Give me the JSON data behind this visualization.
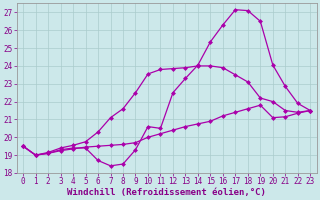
{
  "xlabel": "Windchill (Refroidissement éolien,°C)",
  "xlim": [
    -0.5,
    23.5
  ],
  "ylim": [
    18,
    27.5
  ],
  "xticks": [
    0,
    1,
    2,
    3,
    4,
    5,
    6,
    7,
    8,
    9,
    10,
    11,
    12,
    13,
    14,
    15,
    16,
    17,
    18,
    19,
    20,
    21,
    22,
    23
  ],
  "yticks": [
    18,
    19,
    20,
    21,
    22,
    23,
    24,
    25,
    26,
    27
  ],
  "bg_color": "#cce8ea",
  "grid_color": "#aacccc",
  "line_color": "#aa00aa",
  "line1_x": [
    0,
    1,
    2,
    3,
    4,
    5,
    6,
    7,
    8,
    9,
    10,
    11,
    12,
    13,
    14,
    15,
    16,
    17,
    18,
    19,
    20,
    21,
    22,
    23
  ],
  "line1_y": [
    19.5,
    19.0,
    19.1,
    19.3,
    19.4,
    19.4,
    18.7,
    18.4,
    18.5,
    19.3,
    20.6,
    20.5,
    22.5,
    23.3,
    24.05,
    25.35,
    26.3,
    27.15,
    27.1,
    26.5,
    24.05,
    22.85,
    21.9,
    21.5
  ],
  "line2_x": [
    0,
    1,
    2,
    3,
    4,
    5,
    6,
    7,
    8,
    9,
    10,
    11,
    12,
    13,
    14,
    15,
    16,
    17,
    18,
    19,
    20,
    21,
    22,
    23
  ],
  "line2_y": [
    19.5,
    19.0,
    19.1,
    19.25,
    19.35,
    19.45,
    19.5,
    19.55,
    19.6,
    19.7,
    20.0,
    20.2,
    20.4,
    20.6,
    20.75,
    20.9,
    21.2,
    21.4,
    21.6,
    21.8,
    21.1,
    21.15,
    21.35,
    21.5
  ],
  "line3_x": [
    0,
    1,
    2,
    3,
    4,
    5,
    6,
    7,
    8,
    9,
    10,
    11,
    12,
    13,
    14,
    15,
    16,
    17,
    18,
    19,
    20,
    21,
    22,
    23
  ],
  "line3_y": [
    19.5,
    19.0,
    19.15,
    19.4,
    19.55,
    19.75,
    20.3,
    21.1,
    21.6,
    22.5,
    23.55,
    23.8,
    23.85,
    23.9,
    24.0,
    24.0,
    23.9,
    23.5,
    23.1,
    22.2,
    22.0,
    21.5,
    21.4,
    21.5
  ],
  "marker": "D",
  "markersize": 2.5,
  "linewidth": 0.9,
  "tick_color": "#880088",
  "tick_fontsize": 5.5,
  "xlabel_fontsize": 6.5
}
